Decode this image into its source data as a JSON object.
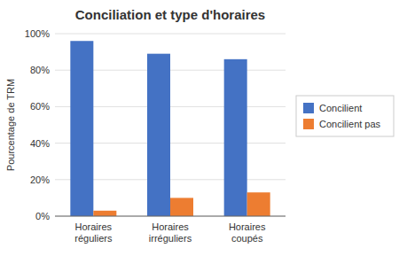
{
  "chart_data": {
    "type": "bar",
    "title": "Conciliation et type d'horaires",
    "ylabel": "Pourcentage de TRM",
    "categories": [
      "Horaires\nréguliers",
      "Horaires\nirréguliers",
      "Horaires\ncoupés"
    ],
    "series": [
      {
        "name": "Concilient",
        "color": "#4472C4",
        "values": [
          0.96,
          0.89,
          0.86
        ]
      },
      {
        "name": "Concilient pas",
        "color": "#ED7D31",
        "values": [
          0.03,
          0.1,
          0.13
        ]
      }
    ],
    "ylim": [
      0,
      1.0
    ],
    "yticks": [
      {
        "value": 0,
        "label": "0%"
      },
      {
        "value": 0.2,
        "label": "20%"
      },
      {
        "value": 0.4,
        "label": "40%"
      },
      {
        "value": 0.6,
        "label": "60%"
      },
      {
        "value": 0.8,
        "label": "80%"
      },
      {
        "value": 1.0,
        "label": "100%"
      }
    ],
    "grid": true,
    "legend": "right"
  }
}
